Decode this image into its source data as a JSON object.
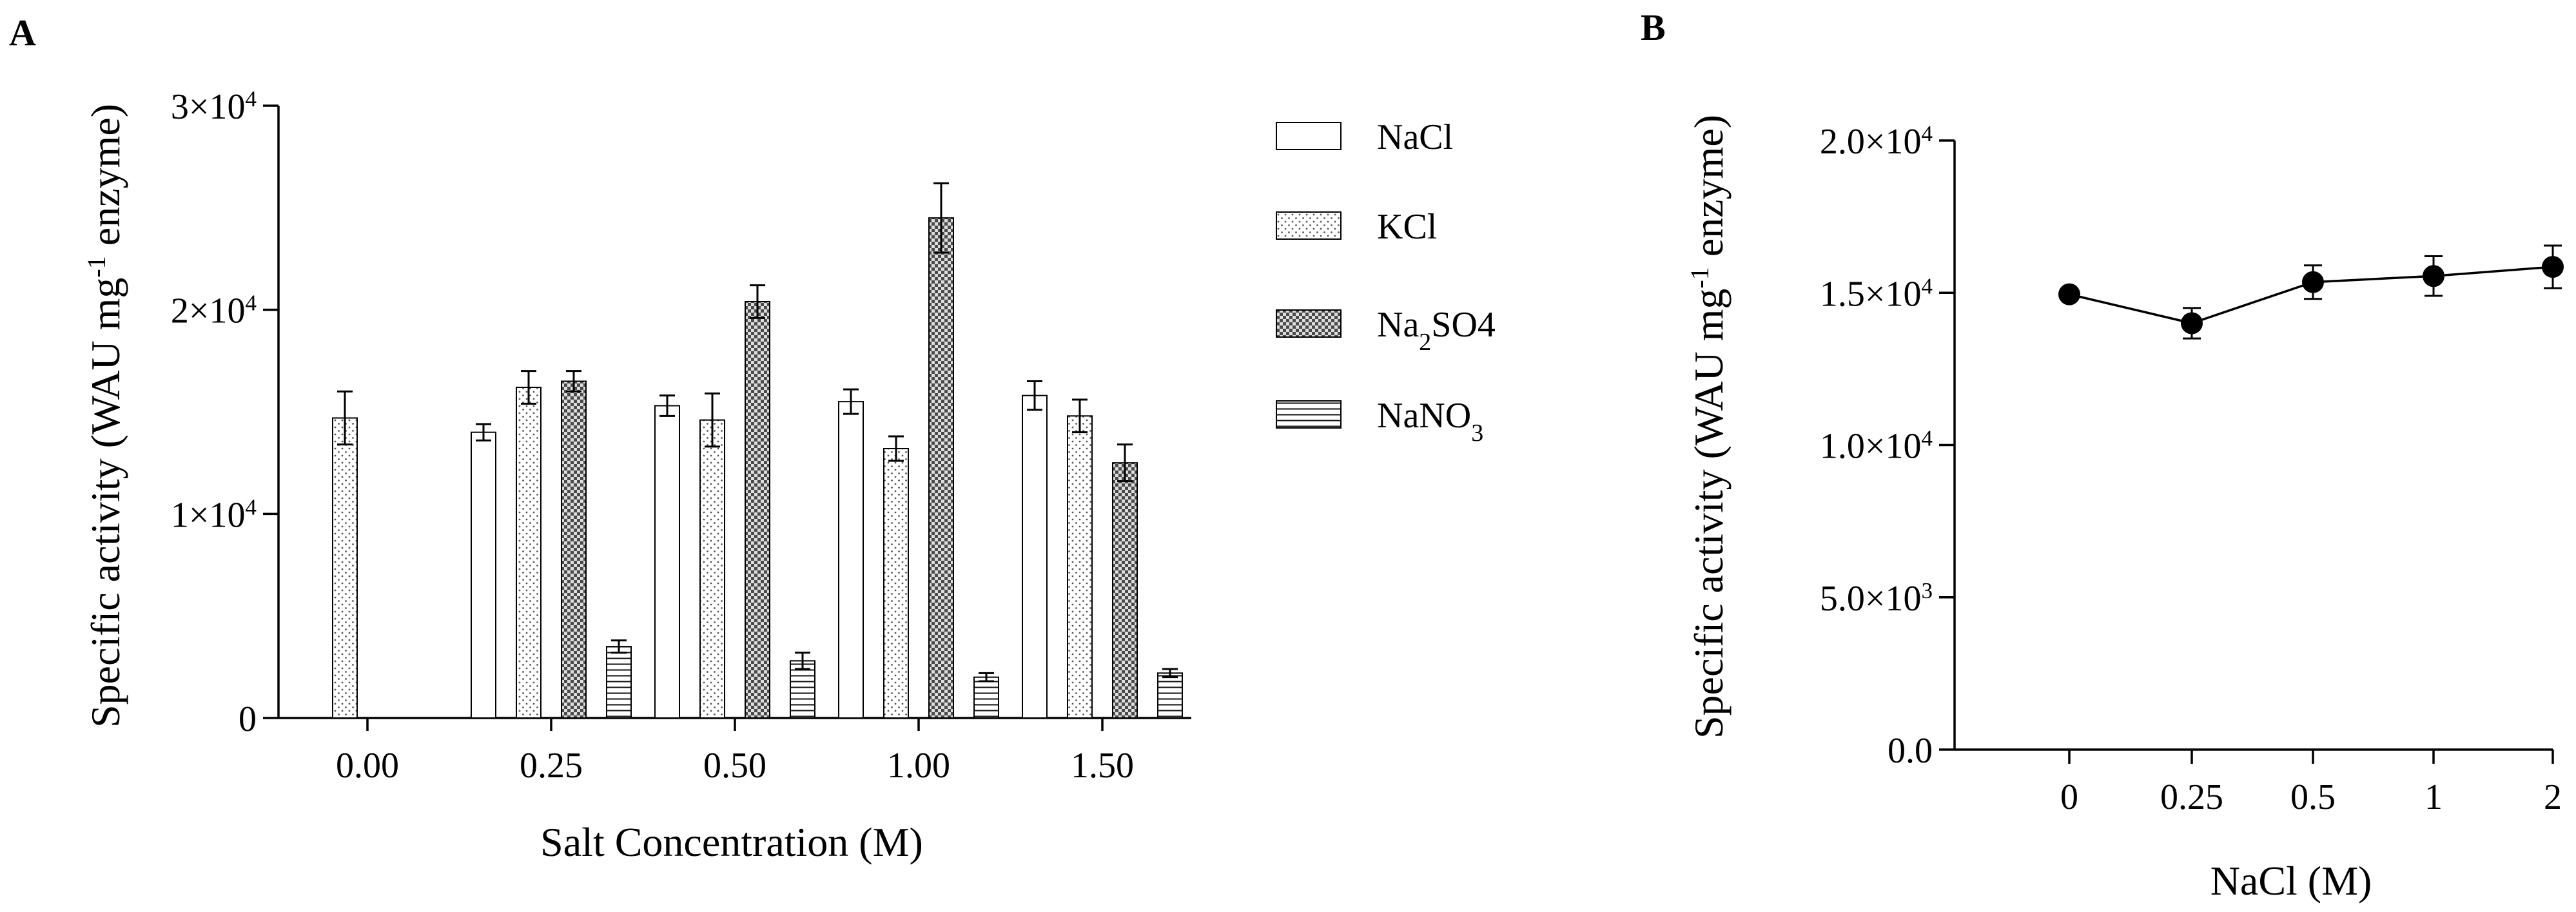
{
  "chart_data": [
    {
      "panel_label": "A",
      "type": "bar",
      "xlabel": "Salt Concentration (M)",
      "ylabel_parts": [
        "Specific activity (WAU mg",
        "-1",
        " enzyme)"
      ],
      "categories": [
        "0.00",
        "0.25",
        "0.50",
        "1.00",
        "1.50"
      ],
      "ylim": [
        0,
        30000
      ],
      "y_ticks": [
        {
          "value": 0,
          "mantissa": "0",
          "exp": ""
        },
        {
          "value": 10000,
          "mantissa": "1×10",
          "exp": "4"
        },
        {
          "value": 20000,
          "mantissa": "2×10",
          "exp": "4"
        },
        {
          "value": 30000,
          "mantissa": "3×10",
          "exp": "4"
        }
      ],
      "series": [
        {
          "name": "NaCl",
          "legend_parts": [
            "NaCl",
            "",
            ""
          ],
          "pattern": "plain",
          "values": [
            null,
            14000,
            15300,
            15500,
            15800
          ],
          "errors": [
            null,
            400,
            500,
            600,
            700
          ]
        },
        {
          "name": "KCl",
          "legend_parts": [
            "KCl",
            "",
            ""
          ],
          "pattern": "dots",
          "values": [
            14700,
            16200,
            14600,
            13200,
            14800
          ],
          "errors": [
            1300,
            800,
            1300,
            600,
            800
          ]
        },
        {
          "name": "Na2SO4",
          "legend_parts": [
            "Na",
            "2",
            "SO4"
          ],
          "pattern": "checker",
          "values": [
            null,
            16500,
            20400,
            24500,
            12500
          ],
          "errors": [
            null,
            500,
            800,
            1700,
            900
          ]
        },
        {
          "name": "NaNO3",
          "legend_parts": [
            "NaNO",
            "3",
            ""
          ],
          "pattern": "hlines",
          "values": [
            null,
            3500,
            2800,
            2000,
            2200
          ],
          "errors": [
            null,
            300,
            400,
            200,
            200
          ]
        }
      ]
    },
    {
      "panel_label": "B",
      "type": "line",
      "xlabel": "NaCl (M)",
      "ylabel_parts": [
        "Specific activity (WAU mg",
        "-1",
        " enzyme)"
      ],
      "x": [
        "0",
        "0.25",
        "0.5",
        "1",
        "2"
      ],
      "y": [
        14950,
        14000,
        15350,
        15550,
        15850
      ],
      "errors": [
        0,
        500,
        550,
        650,
        700
      ],
      "ylim": [
        0,
        20000
      ],
      "y_ticks": [
        {
          "value": 0,
          "mantissa": "0.0",
          "exp": ""
        },
        {
          "value": 5000,
          "mantissa": "5.0×10",
          "exp": "3"
        },
        {
          "value": 10000,
          "mantissa": "1.0×10",
          "exp": "4"
        },
        {
          "value": 15000,
          "mantissa": "1.5×10",
          "exp": "4"
        },
        {
          "value": 20000,
          "mantissa": "2.0×10",
          "exp": "4"
        }
      ]
    }
  ]
}
